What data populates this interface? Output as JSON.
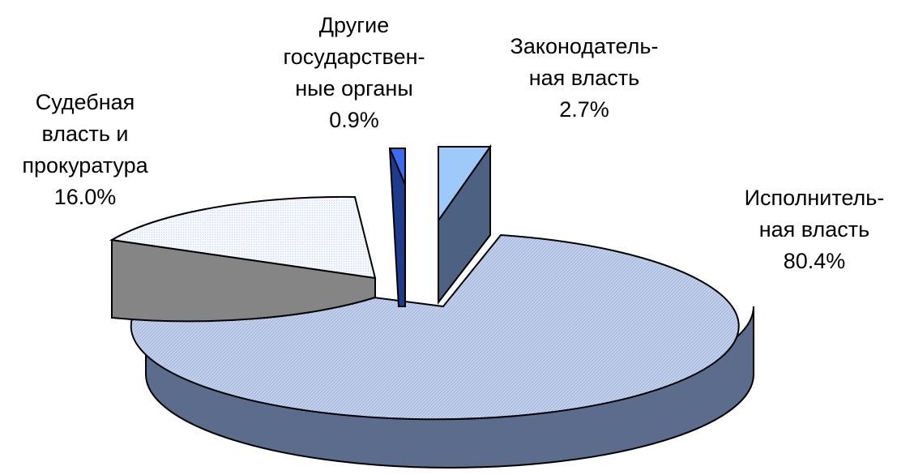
{
  "chart_data": {
    "type": "pie",
    "style": "3d-exploded",
    "title": "",
    "slices": [
      {
        "key": "exec",
        "label_lines": [
          "Исполнитель-",
          "ная власть"
        ],
        "value": 80.4,
        "value_text": "80.4%",
        "color": "#c5d3ef",
        "side_color": "#5b6c8c"
      },
      {
        "key": "judic",
        "label_lines": [
          "Судебная",
          "власть и",
          "прокуратура"
        ],
        "value": 16.0,
        "value_text": "16.0%",
        "color": "#eef3fb",
        "side_color": "#858585"
      },
      {
        "key": "other",
        "label_lines": [
          "Другие",
          "государствен-",
          "ные органы"
        ],
        "value": 0.9,
        "value_text": "0.9%",
        "color": "#3b6cf0",
        "side_color": "#1f3b8c"
      },
      {
        "key": "legis",
        "label_lines": [
          "Законодатель-",
          "ная власть"
        ],
        "value": 2.7,
        "value_text": "2.7%",
        "color": "#9ec9fb",
        "side_color": "#4d6282"
      }
    ]
  }
}
